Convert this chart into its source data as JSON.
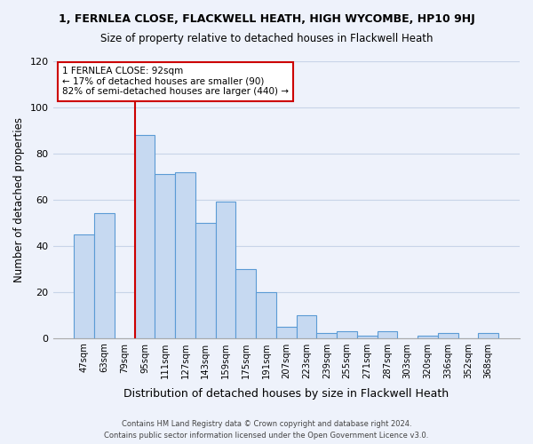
{
  "title": "1, FERNLEA CLOSE, FLACKWELL HEATH, HIGH WYCOMBE, HP10 9HJ",
  "subtitle": "Size of property relative to detached houses in Flackwell Heath",
  "xlabel": "Distribution of detached houses by size in Flackwell Heath",
  "ylabel": "Number of detached properties",
  "bar_labels": [
    "47sqm",
    "63sqm",
    "79sqm",
    "95sqm",
    "111sqm",
    "127sqm",
    "143sqm",
    "159sqm",
    "175sqm",
    "191sqm",
    "207sqm",
    "223sqm",
    "239sqm",
    "255sqm",
    "271sqm",
    "287sqm",
    "303sqm",
    "320sqm",
    "336sqm",
    "352sqm",
    "368sqm"
  ],
  "bar_values": [
    45,
    54,
    0,
    88,
    71,
    72,
    50,
    59,
    30,
    20,
    5,
    10,
    2,
    3,
    1,
    3,
    0,
    1,
    2,
    0,
    2
  ],
  "bar_color": "#c6d9f1",
  "bar_edge_color": "#5b9bd5",
  "ylim": [
    0,
    120
  ],
  "yticks": [
    0,
    20,
    40,
    60,
    80,
    100,
    120
  ],
  "vline_label_index": 3,
  "vline_color": "#cc0000",
  "annotation_line1": "1 FERNLEA CLOSE: 92sqm",
  "annotation_line2": "← 17% of detached houses are smaller (90)",
  "annotation_line3": "82% of semi-detached houses are larger (440) →",
  "annotation_box_color": "#ffffff",
  "annotation_box_edge": "#cc0000",
  "footer_text": "Contains HM Land Registry data © Crown copyright and database right 2024.\nContains public sector information licensed under the Open Government Licence v3.0.",
  "background_color": "#eef2fb",
  "grid_color": "#c8d4e8"
}
